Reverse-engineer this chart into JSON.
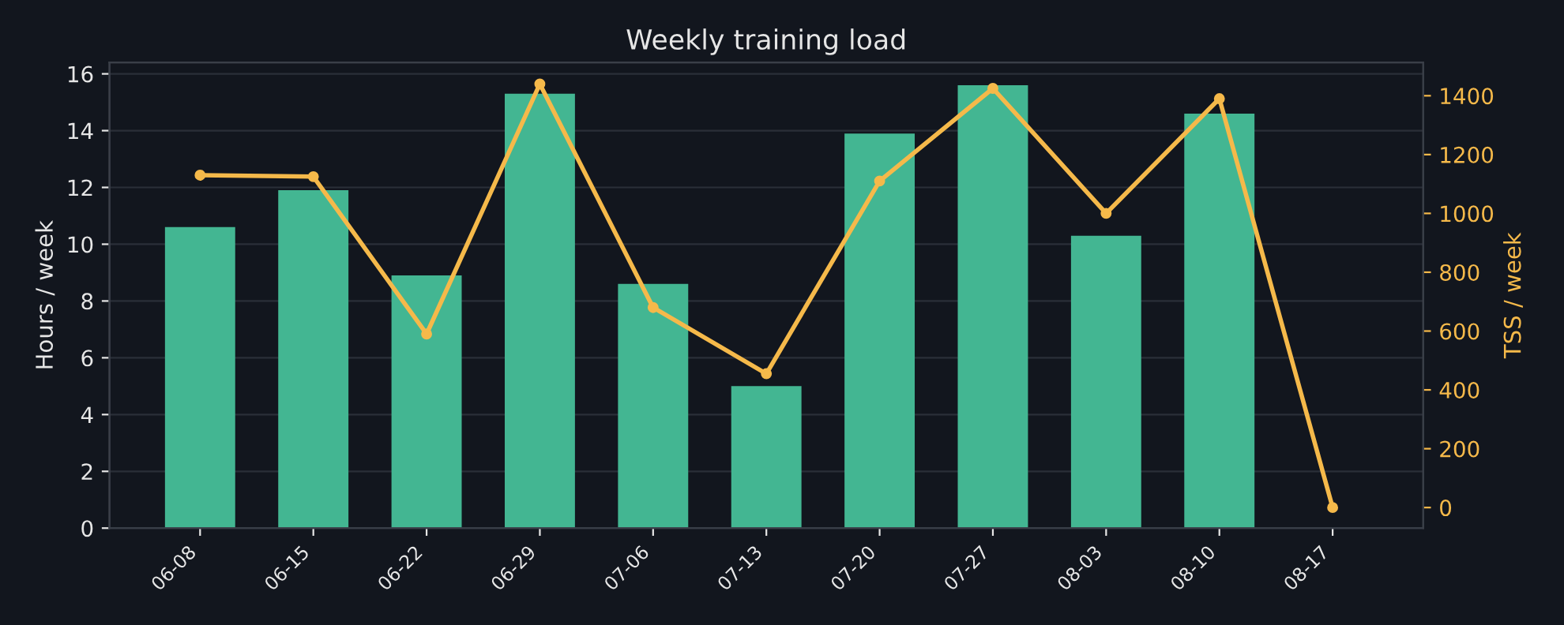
{
  "chart_data": {
    "type": "bar",
    "title": "Weekly training load",
    "ylabel": "Hours / week",
    "y2label": "TSS / week",
    "categories": [
      "06-08",
      "06-15",
      "06-22",
      "06-29",
      "07-06",
      "07-13",
      "07-20",
      "07-27",
      "08-03",
      "08-10",
      "08-17"
    ],
    "series": [
      {
        "color": "#43b692",
        "values": [
          10.6,
          11.9,
          8.9,
          15.3,
          8.6,
          5.0,
          13.9,
          15.6,
          10.3,
          14.6,
          null
        ]
      },
      {
        "type": "line",
        "axis": "y2",
        "color": "#f5b94a",
        "marker": "circle",
        "values": [
          1130,
          1125,
          590,
          1440,
          680,
          455,
          1110,
          1425,
          1000,
          1390,
          0
        ]
      }
    ],
    "ylim": [
      0,
      16.4
    ],
    "yticks": [
      0,
      2,
      4,
      6,
      8,
      10,
      12,
      14,
      16
    ],
    "y2lim": [
      -70,
      1513
    ],
    "y2ticks": [
      0,
      200,
      400,
      600,
      800,
      1000,
      1200,
      1400
    ],
    "grid": "y",
    "legend": false
  }
}
